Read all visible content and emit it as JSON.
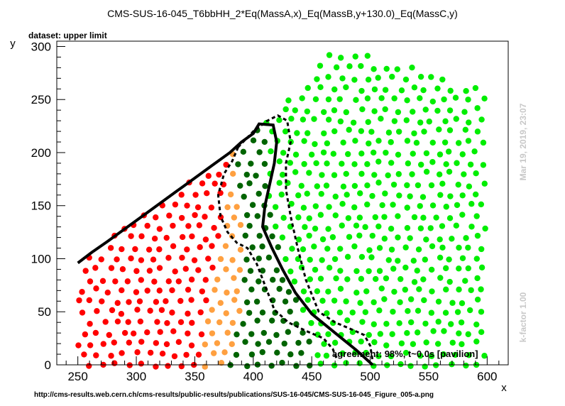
{
  "chart_data": {
    "type": "scatter",
    "title": "CMS-SUS-16-045_T6bbHH_2*Eq(MassA,x)_Eq(MassB,y+130.0)_Eq(MassC,y)",
    "subtitle": "dataset: upper limit",
    "xlabel": "x",
    "ylabel": "y",
    "xlim": [
      232,
      618
    ],
    "ylim": [
      0,
      305
    ],
    "x_ticks": [
      250,
      300,
      350,
      400,
      450,
      500,
      550,
      600
    ],
    "y_ticks": [
      0,
      50,
      100,
      150,
      200,
      250,
      300
    ],
    "grid": false,
    "point_colors": {
      "excluded": "#ff0000",
      "excluded_marginal": "#ffa040",
      "allowed_marginal": "#006400",
      "allowed": "#00ee00"
    },
    "region_boundaries": {
      "excluded_to_excluded_marginal": [
        [
          355,
          0
        ],
        [
          358,
          40
        ],
        [
          365,
          80
        ],
        [
          372,
          120
        ],
        [
          376,
          160
        ],
        [
          380,
          200
        ],
        [
          390,
          225
        ]
      ],
      "excluded_marginal_to_allowed_marginal": [
        [
          380,
          0
        ],
        [
          390,
          50
        ],
        [
          392,
          110
        ],
        [
          388,
          160
        ],
        [
          384,
          200
        ],
        [
          390,
          230
        ]
      ],
      "allowed_marginal_to_allowed": [
        [
          455,
          0
        ],
        [
          445,
          40
        ],
        [
          430,
          80
        ],
        [
          420,
          120
        ],
        [
          413,
          160
        ],
        [
          410,
          200
        ],
        [
          410,
          235
        ]
      ]
    },
    "point_spacing": [
      11,
      10
    ],
    "seed": 7,
    "series": [
      {
        "name": "",
        "style": "solid",
        "color": "#000000",
        "x": [
          250,
          262,
          275,
          290,
          305,
          320,
          335,
          350,
          365,
          380,
          390,
          400,
          405,
          417,
          420,
          418,
          414,
          410,
          408,
          416,
          425,
          436,
          450,
          470,
          488,
          498,
          502
        ],
        "y": [
          96,
          106,
          116,
          128,
          140,
          152,
          164,
          176,
          188,
          200,
          210,
          218,
          227,
          226,
          210,
          190,
          170,
          150,
          130,
          110,
          90,
          68,
          48,
          30,
          14,
          4,
          0
        ]
      },
      {
        "name": "",
        "style": "dashed",
        "color": "#000000",
        "x": [
          387,
          400,
          412,
          421,
          429,
          432,
          428,
          428,
          432,
          438,
          445,
          456,
          470,
          485,
          495,
          500,
          502
        ],
        "y": [
          205,
          220,
          230,
          235,
          230,
          210,
          190,
          165,
          140,
          110,
          80,
          50,
          40,
          33,
          28,
          18,
          4
        ]
      },
      {
        "name": "",
        "style": "dashed",
        "color": "#000000",
        "x": [
          387,
          382,
          375,
          370,
          372,
          378,
          386,
          395,
          403,
          410,
          418,
          430,
          445,
          460,
          468,
          472
        ],
        "y": [
          205,
          192,
          180,
          160,
          140,
          125,
          115,
          110,
          95,
          75,
          52,
          40,
          32,
          25,
          15,
          4
        ]
      }
    ],
    "annotation": "agreement: 98%, t~0.0s [pavilion]"
  },
  "footer": {
    "url": "http://cms-results.web.cern.ch/cms-results/public-results/publications/SUS-16-045/CMS-SUS-16-045_Figure_005-a.png"
  },
  "side_labels": {
    "timestamp": "Mar 19, 2019, 23:07",
    "kfactor": "k-factor 1.00"
  }
}
